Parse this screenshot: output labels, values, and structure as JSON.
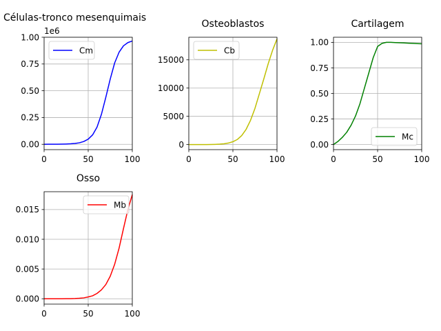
{
  "chart_data": [
    {
      "type": "line",
      "title": "Células-tronco mesenquimais",
      "xlim": [
        0,
        100
      ],
      "ylim": [
        -50000,
        1000000
      ],
      "xticks": [
        0,
        50,
        100
      ],
      "xtick_labels": [
        "0",
        "50",
        "100"
      ],
      "yticks": [
        0,
        250000,
        500000,
        750000,
        1000000
      ],
      "ytick_labels": [
        "0.00",
        "0.25",
        "0.50",
        "0.75",
        "1.00"
      ],
      "y_offset_label": "1e6",
      "grid": true,
      "legend_position": "upper-left",
      "series": [
        {
          "name": "Cm",
          "color": "#0000ff",
          "x": [
            0,
            5,
            10,
            15,
            20,
            25,
            30,
            35,
            40,
            45,
            50,
            55,
            60,
            65,
            70,
            75,
            80,
            85,
            90,
            95,
            100
          ],
          "y": [
            300,
            400,
            600,
            900,
            1500,
            2600,
            4500,
            8000,
            14000,
            26000,
            48000,
            88000,
            160000,
            280000,
            440000,
            610000,
            760000,
            860000,
            920000,
            950000,
            965000
          ]
        }
      ]
    },
    {
      "type": "line",
      "title": "Osteoblastos",
      "xlim": [
        0,
        100
      ],
      "ylim": [
        -900,
        19000
      ],
      "xticks": [
        0,
        50,
        100
      ],
      "xtick_labels": [
        "0",
        "50",
        "100"
      ],
      "yticks": [
        0,
        5000,
        10000,
        15000
      ],
      "ytick_labels": [
        "0",
        "5000",
        "10000",
        "15000"
      ],
      "grid": true,
      "legend_position": "upper-left",
      "series": [
        {
          "name": "Cb",
          "color": "#bfbf00",
          "x": [
            0,
            5,
            10,
            15,
            20,
            25,
            30,
            35,
            40,
            45,
            50,
            55,
            60,
            65,
            70,
            75,
            80,
            85,
            90,
            95,
            100
          ],
          "y": [
            0,
            0,
            1,
            3,
            7,
            16,
            35,
            70,
            140,
            270,
            500,
            900,
            1600,
            2700,
            4300,
            6400,
            9000,
            11600,
            14300,
            16700,
            18700
          ]
        }
      ]
    },
    {
      "type": "line",
      "title": "Cartilagem",
      "xlim": [
        0,
        100
      ],
      "ylim": [
        -0.05,
        1.05
      ],
      "xticks": [
        0,
        50,
        100
      ],
      "xtick_labels": [
        "0",
        "50",
        "100"
      ],
      "yticks": [
        0,
        0.25,
        0.5,
        0.75,
        1.0
      ],
      "ytick_labels": [
        "0.00",
        "0.25",
        "0.50",
        "0.75",
        "1.00"
      ],
      "grid": true,
      "legend_position": "lower-right",
      "series": [
        {
          "name": "Mc",
          "color": "#008000",
          "x": [
            0,
            5,
            10,
            15,
            20,
            25,
            30,
            35,
            40,
            45,
            50,
            55,
            60,
            65,
            70,
            75,
            80,
            85,
            90,
            95,
            100
          ],
          "y": [
            0,
            0.03,
            0.07,
            0.12,
            0.19,
            0.28,
            0.4,
            0.55,
            0.7,
            0.85,
            0.96,
            0.99,
            1.0,
            1.0,
            0.998,
            0.996,
            0.994,
            0.992,
            0.99,
            0.988,
            0.986
          ]
        }
      ]
    },
    {
      "type": "line",
      "title": "Osso",
      "xlim": [
        0,
        100
      ],
      "ylim": [
        -0.0009,
        0.018
      ],
      "xticks": [
        0,
        50,
        100
      ],
      "xtick_labels": [
        "0",
        "50",
        "100"
      ],
      "yticks": [
        0,
        0.005,
        0.01,
        0.015
      ],
      "ytick_labels": [
        "0.000",
        "0.005",
        "0.010",
        "0.015"
      ],
      "grid": true,
      "legend_position": "upper-right",
      "series": [
        {
          "name": "Mb",
          "color": "#ff0000",
          "x": [
            0,
            5,
            10,
            15,
            20,
            25,
            30,
            35,
            40,
            45,
            50,
            55,
            60,
            65,
            70,
            75,
            80,
            85,
            90,
            95,
            100
          ],
          "y": [
            0,
            0,
            0,
            0,
            0,
            1e-05,
            2e-05,
            4e-05,
            8e-05,
            0.00015,
            0.0003,
            0.0005,
            0.0009,
            0.0015,
            0.0024,
            0.0038,
            0.0058,
            0.0085,
            0.0118,
            0.015,
            0.0175
          ]
        }
      ]
    }
  ]
}
